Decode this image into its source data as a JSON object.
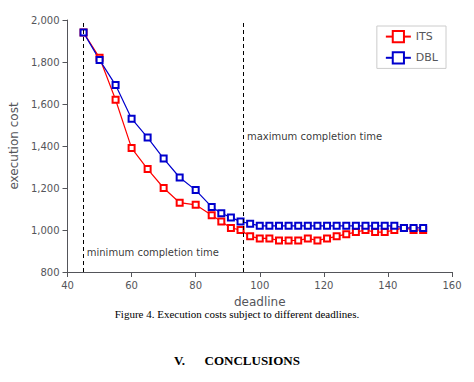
{
  "chart_data": {
    "type": "line",
    "caption": "Figure 4. Execution costs subject to different deadlines.",
    "heading": "V.      CONCLUSIONS",
    "xlabel": "deadline",
    "ylabel": "execution cost",
    "xlim": [
      40,
      160
    ],
    "ylim": [
      800,
      2000
    ],
    "xticks": [
      40,
      60,
      80,
      100,
      120,
      140,
      160
    ],
    "yticks": [
      800,
      1000,
      1200,
      1400,
      1600,
      1800,
      2000
    ],
    "grid": false,
    "legend": "upper right",
    "x": [
      45,
      50,
      55,
      60,
      65,
      70,
      75,
      80,
      85,
      88,
      91,
      94,
      97,
      100,
      103,
      106,
      109,
      112,
      115,
      118,
      121,
      124,
      127,
      130,
      133,
      136,
      139,
      142,
      145,
      148,
      151
    ],
    "series": [
      {
        "name": "ITS",
        "color": "#ff0000",
        "marker": "square",
        "line_style": "solid",
        "values": [
          1940,
          1820,
          1620,
          1390,
          1290,
          1200,
          1130,
          1120,
          1070,
          1040,
          1010,
          1000,
          970,
          960,
          960,
          950,
          950,
          950,
          960,
          950,
          960,
          970,
          980,
          990,
          1000,
          990,
          990,
          1000,
          1010,
          1000,
          1000
        ]
      },
      {
        "name": "DBL",
        "color": "#0000cd",
        "marker": "square",
        "line_style": "solid",
        "values": [
          1940,
          1810,
          1690,
          1530,
          1440,
          1340,
          1250,
          1190,
          1110,
          1080,
          1060,
          1040,
          1030,
          1020,
          1020,
          1020,
          1020,
          1020,
          1020,
          1020,
          1020,
          1020,
          1020,
          1020,
          1020,
          1020,
          1020,
          1020,
          1010,
          1010,
          1010
        ]
      }
    ],
    "vlines": [
      45,
      95
    ],
    "annotations": [
      {
        "text": "minimum completion time",
        "x": 46,
        "y": 870
      },
      {
        "text": "maximum completion time",
        "x": 96,
        "y": 1420
      }
    ]
  }
}
